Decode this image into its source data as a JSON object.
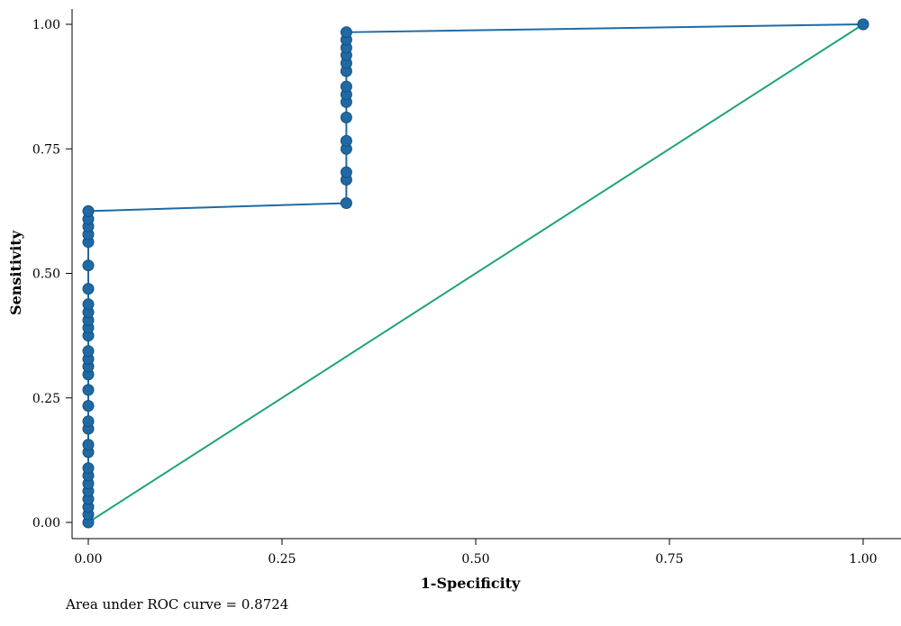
{
  "chart_data": {
    "type": "line",
    "xlabel": "1-Specificity",
    "ylabel": "Sensitivity",
    "xlim": [
      0,
      1
    ],
    "ylim": [
      0,
      1
    ],
    "x_ticks": [
      "0.00",
      "0.25",
      "0.50",
      "0.75",
      "1.00"
    ],
    "y_ticks": [
      "0.00",
      "0.25",
      "0.50",
      "0.75",
      "1.00"
    ],
    "grid": false,
    "series": [
      {
        "role": "roc-curve",
        "color": "#1f6aa5",
        "markers": true,
        "points": [
          [
            0,
            0
          ],
          [
            0,
            0.016
          ],
          [
            0,
            0.031
          ],
          [
            0,
            0.047
          ],
          [
            0,
            0.063
          ],
          [
            0,
            0.078
          ],
          [
            0,
            0.094
          ],
          [
            0,
            0.109
          ],
          [
            0,
            0.141
          ],
          [
            0,
            0.156
          ],
          [
            0,
            0.188
          ],
          [
            0,
            0.203
          ],
          [
            0,
            0.234
          ],
          [
            0,
            0.266
          ],
          [
            0,
            0.297
          ],
          [
            0,
            0.313
          ],
          [
            0,
            0.328
          ],
          [
            0,
            0.344
          ],
          [
            0,
            0.375
          ],
          [
            0,
            0.391
          ],
          [
            0,
            0.406
          ],
          [
            0,
            0.422
          ],
          [
            0,
            0.438
          ],
          [
            0,
            0.469
          ],
          [
            0,
            0.516
          ],
          [
            0,
            0.563
          ],
          [
            0,
            0.578
          ],
          [
            0,
            0.594
          ],
          [
            0,
            0.609
          ],
          [
            0,
            0.625
          ],
          [
            0.333,
            0.641
          ],
          [
            0.333,
            0.688
          ],
          [
            0.333,
            0.703
          ],
          [
            0.333,
            0.75
          ],
          [
            0.333,
            0.766
          ],
          [
            0.333,
            0.813
          ],
          [
            0.333,
            0.844
          ],
          [
            0.333,
            0.859
          ],
          [
            0.333,
            0.875
          ],
          [
            0.333,
            0.906
          ],
          [
            0.333,
            0.922
          ],
          [
            0.333,
            0.938
          ],
          [
            0.333,
            0.953
          ],
          [
            0.333,
            0.969
          ],
          [
            0.333,
            0.984
          ],
          [
            1,
            1
          ]
        ]
      },
      {
        "role": "reference-line",
        "color": "#1fa37a",
        "markers": false,
        "points": [
          [
            0,
            0
          ],
          [
            1,
            1
          ]
        ]
      }
    ],
    "annotation": "Area under ROC curve = 0.8724"
  }
}
